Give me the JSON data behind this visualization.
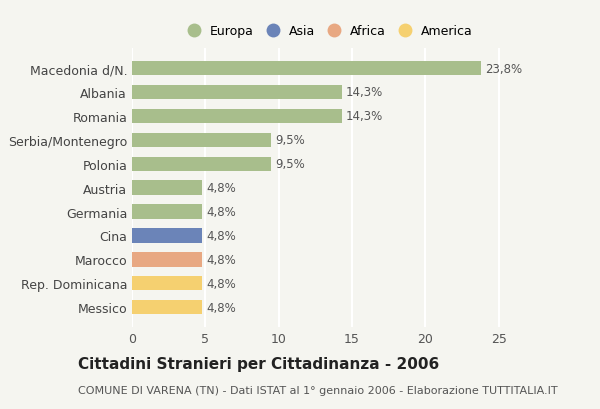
{
  "categories": [
    "Macedonia d/N.",
    "Albania",
    "Romania",
    "Serbia/Montenegro",
    "Polonia",
    "Austria",
    "Germania",
    "Cina",
    "Marocco",
    "Rep. Dominicana",
    "Messico"
  ],
  "values": [
    23.8,
    14.3,
    14.3,
    9.5,
    9.5,
    4.8,
    4.8,
    4.8,
    4.8,
    4.8,
    4.8
  ],
  "bar_colors": [
    "#a8be8c",
    "#a8be8c",
    "#a8be8c",
    "#a8be8c",
    "#a8be8c",
    "#a8be8c",
    "#a8be8c",
    "#6b84b8",
    "#e8a882",
    "#f5d070",
    "#f5d070"
  ],
  "labels": [
    "23,8%",
    "14,3%",
    "14,3%",
    "9,5%",
    "9,5%",
    "4,8%",
    "4,8%",
    "4,8%",
    "4,8%",
    "4,8%",
    "4,8%"
  ],
  "legend_labels": [
    "Europa",
    "Asia",
    "Africa",
    "America"
  ],
  "legend_colors": [
    "#a8be8c",
    "#6b84b8",
    "#e8a882",
    "#f5d070"
  ],
  "title": "Cittadini Stranieri per Cittadinanza - 2006",
  "subtitle": "COMUNE DI VARENA (TN) - Dati ISTAT al 1° gennaio 2006 - Elaborazione TUTTITALIA.IT",
  "xlim": [
    0,
    27
  ],
  "xticks": [
    0,
    5,
    10,
    15,
    20,
    25
  ],
  "background_color": "#f5f5f0",
  "bar_height": 0.6,
  "grid_color": "#ffffff",
  "label_fontsize": 8.5,
  "title_fontsize": 11,
  "subtitle_fontsize": 8
}
